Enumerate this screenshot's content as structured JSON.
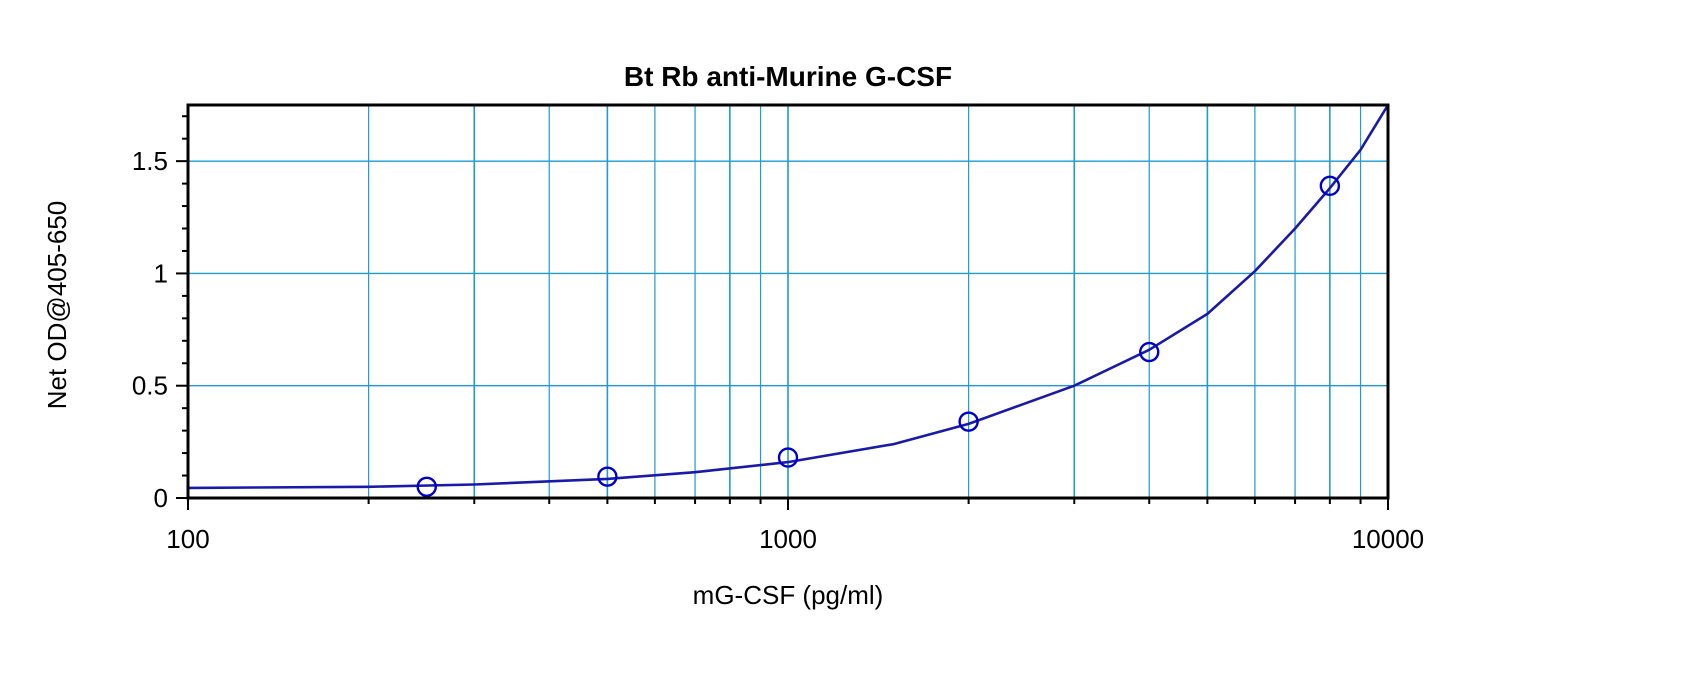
{
  "chart_data": {
    "type": "scatter",
    "title": "Bt Rb anti-Murine G-CSF",
    "xlabel": "mG-CSF (pg/ml)",
    "ylabel": "Net OD@405-650",
    "x_scale": "log",
    "xlim": [
      100,
      10000
    ],
    "ylim": [
      0,
      1.75
    ],
    "x_ticks": [
      100,
      1000,
      10000
    ],
    "x_tick_labels": [
      "100",
      "1000",
      "10000"
    ],
    "y_ticks": [
      0,
      0.5,
      1,
      1.5
    ],
    "y_tick_labels": [
      "0",
      "0.5",
      "1",
      "1.5"
    ],
    "grid": true,
    "series": [
      {
        "mode": "markers",
        "marker": "open-circle",
        "color": "#0000cc",
        "x": [
          250,
          500,
          1000,
          2000,
          4000,
          8000
        ],
        "y": [
          0.05,
          0.095,
          0.18,
          0.34,
          0.65,
          1.39
        ]
      },
      {
        "mode": "line",
        "color": "#1a1aaa",
        "x": [
          100,
          200,
          300,
          500,
          700,
          1000,
          1500,
          2000,
          3000,
          4000,
          5000,
          6000,
          7000,
          8000,
          9000,
          10000
        ],
        "y": [
          0.045,
          0.05,
          0.06,
          0.085,
          0.115,
          0.16,
          0.24,
          0.33,
          0.5,
          0.66,
          0.82,
          1.01,
          1.2,
          1.38,
          1.55,
          1.75
        ]
      }
    ]
  },
  "colors": {
    "grid": "#1e9bd1",
    "frame": "#000000",
    "curve": "#1a1aaa",
    "marker": "#0000cc"
  }
}
